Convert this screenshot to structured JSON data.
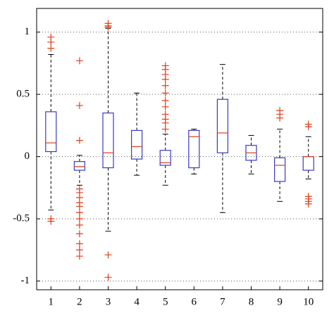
{
  "chart_data": {
    "type": "box",
    "categories": [
      "1",
      "2",
      "3",
      "4",
      "5",
      "6",
      "7",
      "8",
      "9",
      "10"
    ],
    "boxes": [
      {
        "whisker_low": -0.43,
        "q1": 0.04,
        "median": 0.11,
        "q3": 0.36,
        "whisker_high": 0.82,
        "outliers": [
          0.96,
          0.92,
          0.87,
          -0.5,
          -0.52
        ]
      },
      {
        "whisker_low": -0.23,
        "q1": -0.11,
        "median": -0.08,
        "q3": -0.04,
        "whisker_high": 0.01,
        "outliers": [
          0.77,
          0.41,
          0.13,
          -0.26,
          -0.29,
          -0.33,
          -0.37,
          -0.4,
          -0.45,
          -0.5,
          -0.55,
          -0.62,
          -0.7,
          -0.75,
          -0.8
        ]
      },
      {
        "whisker_low": -0.6,
        "q1": -0.09,
        "median": 0.03,
        "q3": 0.35,
        "whisker_high": 1.03,
        "outliers": [
          1.07,
          1.05,
          1.04,
          -0.79,
          -0.97
        ]
      },
      {
        "whisker_low": -0.15,
        "q1": -0.02,
        "median": 0.08,
        "q3": 0.21,
        "whisker_high": 0.51,
        "outliers": []
      },
      {
        "whisker_low": -0.23,
        "q1": -0.07,
        "median": -0.05,
        "q3": 0.05,
        "whisker_high": 0.18,
        "outliers": [
          0.73,
          0.7,
          0.66,
          0.62,
          0.57,
          0.51,
          0.45,
          0.4,
          0.34,
          0.3,
          0.27,
          0.22
        ]
      },
      {
        "whisker_low": -0.14,
        "q1": -0.09,
        "median": 0.16,
        "q3": 0.21,
        "whisker_high": 0.22,
        "outliers": []
      },
      {
        "whisker_low": -0.45,
        "q1": 0.03,
        "median": 0.19,
        "q3": 0.46,
        "whisker_high": 0.74,
        "outliers": []
      },
      {
        "whisker_low": -0.14,
        "q1": -0.03,
        "median": 0.03,
        "q3": 0.09,
        "whisker_high": 0.17,
        "outliers": []
      },
      {
        "whisker_low": -0.36,
        "q1": -0.2,
        "median": -0.07,
        "q3": -0.01,
        "whisker_high": 0.22,
        "outliers": [
          0.37,
          0.34,
          0.31
        ]
      },
      {
        "whisker_low": -0.18,
        "q1": -0.11,
        "median": 0.0,
        "q3": 0.0,
        "whisker_high": 0.16,
        "outliers": [
          0.26,
          0.24,
          -0.32,
          -0.34,
          -0.36,
          -0.38
        ]
      }
    ],
    "box_color": "#3a3ac8",
    "median_color": "#e0401a",
    "outlier_color": "#e0401a",
    "whisker_color": "#000000",
    "ylim": [
      -1.07,
      1.19
    ],
    "yticks": [
      1,
      0.5,
      0,
      -0.5,
      -1
    ],
    "grid": true
  }
}
